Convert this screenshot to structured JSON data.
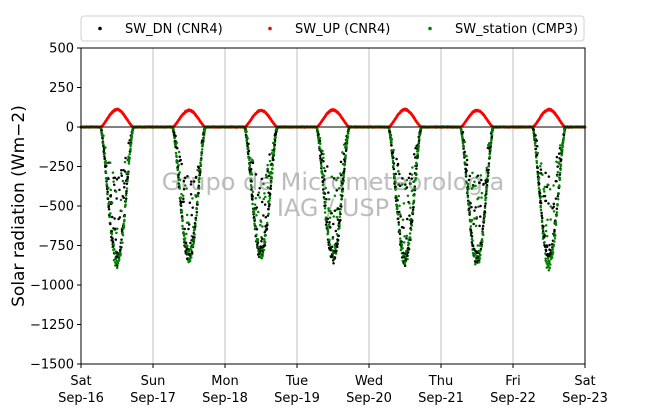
{
  "chart_data": {
    "type": "scatter",
    "title": "",
    "xlabel": "",
    "ylabel": "Solar radiation (Wm−2)",
    "ylim": [
      -1500,
      500
    ],
    "yticks": [
      500,
      250,
      0,
      -250,
      -500,
      -750,
      -1000,
      -1250,
      -1500
    ],
    "ytick_labels": [
      "500",
      "250",
      "0",
      "−250",
      "−500",
      "−750",
      "−1000",
      "−1250",
      "−1500"
    ],
    "xlim_days": [
      "Sep-16",
      "Sep-23"
    ],
    "xtick_labels": [
      {
        "day": "Sat",
        "date": "Sep-16"
      },
      {
        "day": "Sun",
        "date": "Sep-17"
      },
      {
        "day": "Mon",
        "date": "Sep-18"
      },
      {
        "day": "Tue",
        "date": "Sep-19"
      },
      {
        "day": "Wed",
        "date": "Sep-20"
      },
      {
        "day": "Thu",
        "date": "Sep-21"
      },
      {
        "day": "Fri",
        "date": "Sep-22"
      },
      {
        "day": "Sat",
        "date": "Sep-23"
      }
    ],
    "grid": "vertical",
    "legend_position": "top",
    "watermark": [
      "Grupo de Micrometeorologia",
      "IAG / USP"
    ],
    "series": [
      {
        "name": "SW_DN (CNR4)",
        "color": "#000000",
        "daily_minimum": [
          -880,
          -860,
          -850,
          -870,
          -880,
          -880,
          -860
        ]
      },
      {
        "name": "SW_UP (CNR4)",
        "color": "#ff0000",
        "daily_peak": [
          115,
          110,
          110,
          112,
          115,
          110,
          115
        ]
      },
      {
        "name": "SW_station (CMP3)",
        "color": "#008000",
        "daily_minimum": [
          -900,
          -860,
          -840,
          -860,
          -880,
          -890,
          -920
        ]
      }
    ]
  }
}
